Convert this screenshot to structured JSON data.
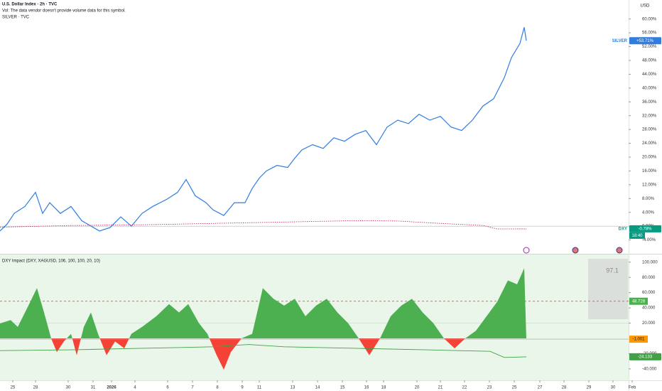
{
  "chart_data": [
    {
      "type": "line",
      "title": "U.S. Dollar Index · 2h · TVC",
      "subtitle": "Vol: The data vendor doesn't provide volume data for this symbol.",
      "symbol_line": "SILVER · TVC",
      "currency": "USD",
      "xlim": [
        0,
        885
      ],
      "ylim": [
        -8,
        65.5
      ],
      "yticks": [
        {
          "value": 60,
          "label": "60.00%"
        },
        {
          "value": 56,
          "label": "56.00%"
        },
        {
          "value": 52,
          "label": "52.00%"
        },
        {
          "value": 48,
          "label": "48.00%"
        },
        {
          "value": 44,
          "label": "44.00%"
        },
        {
          "value": 40,
          "label": "40.00%"
        },
        {
          "value": 36,
          "label": "36.00%"
        },
        {
          "value": 32,
          "label": "32.00%"
        },
        {
          "value": 28,
          "label": "28.00%"
        },
        {
          "value": 24,
          "label": "24.00%"
        },
        {
          "value": 20,
          "label": "20.00%"
        },
        {
          "value": 16,
          "label": "16.00%"
        },
        {
          "value": 12,
          "label": "12.00%"
        },
        {
          "value": 8,
          "label": "8.00%"
        },
        {
          "value": 4,
          "label": "4.00%"
        },
        {
          "value": 0,
          "label": "0.00%"
        },
        {
          "value": -4,
          "label": "-4.00%"
        }
      ],
      "series": [
        {
          "name": "SILVER",
          "color": "#2f7de1",
          "x": [
            0,
            10,
            20,
            35,
            50,
            60,
            70,
            85,
            100,
            115,
            140,
            155,
            170,
            185,
            200,
            215,
            235,
            250,
            262,
            275,
            290,
            300,
            315,
            330,
            345,
            355,
            365,
            375,
            390,
            405,
            415,
            425,
            440,
            455,
            470,
            485,
            500,
            515,
            530,
            545,
            560,
            575,
            590,
            605,
            620,
            635,
            650,
            665,
            680,
            695,
            710,
            720,
            732,
            738,
            741
          ],
          "values": [
            -1.4,
            0.6,
            3.7,
            5.7,
            9.8,
            3.7,
            6.8,
            3.7,
            5.7,
            1.6,
            -1.4,
            -0.4,
            2.7,
            0,
            3.7,
            5.7,
            7.8,
            9.8,
            13.5,
            8.8,
            6.8,
            4.7,
            3.1,
            6.8,
            6.8,
            10.9,
            13.9,
            16,
            17.6,
            17,
            19.7,
            22.1,
            23.6,
            22.5,
            25.6,
            24.6,
            26.6,
            27.7,
            23.6,
            28.7,
            30.7,
            29.7,
            32.4,
            30.7,
            31.8,
            28.7,
            27.7,
            30.7,
            34.8,
            36.9,
            43,
            48.8,
            52.9,
            57.6,
            53.71
          ],
          "last_label": "+53.71%"
        },
        {
          "name": "DXY",
          "color": "#c2185b",
          "x": [
            0,
            100,
            200,
            300,
            400,
            500,
            560,
            620,
            680,
            700,
            741
          ],
          "values": [
            -0.3,
            0.2,
            0.4,
            0.8,
            1.2,
            1.6,
            1.5,
            0.8,
            0.2,
            -0.8,
            -0.78
          ],
          "last_label": "-0.78%",
          "countdown": "18:40"
        }
      ]
    },
    {
      "type": "area",
      "title": "DXY Impact (DXY, XAGUSD, 106, 100, 100, 20, 10)",
      "xlim": [
        0,
        885
      ],
      "ylim": [
        -55,
        110
      ],
      "yticks": [
        {
          "value": 100,
          "label": "100.000"
        },
        {
          "value": 80,
          "label": "80.000"
        },
        {
          "value": 60,
          "label": "60.000"
        },
        {
          "value": 40,
          "label": "40.000"
        },
        {
          "value": 20,
          "label": "20.000"
        },
        {
          "value": -20,
          "label": "-20.000"
        },
        {
          "value": -40,
          "label": "-40.000"
        }
      ],
      "xticks": [
        {
          "value": 18,
          "label": "25"
        },
        {
          "value": 50,
          "label": "28"
        },
        {
          "value": 96,
          "label": "30"
        },
        {
          "value": 131,
          "label": "31"
        },
        {
          "value": 157,
          "label": "2026"
        },
        {
          "value": 190,
          "label": "4"
        },
        {
          "value": 236,
          "label": "6"
        },
        {
          "value": 271,
          "label": "7"
        },
        {
          "value": 306,
          "label": "8"
        },
        {
          "value": 341,
          "label": "9"
        },
        {
          "value": 365,
          "label": "11"
        },
        {
          "value": 412,
          "label": "13"
        },
        {
          "value": 447,
          "label": "14"
        },
        {
          "value": 482,
          "label": "15"
        },
        {
          "value": 516,
          "label": "16"
        },
        {
          "value": 540,
          "label": "18"
        },
        {
          "value": 587,
          "label": "20"
        },
        {
          "value": 620,
          "label": "21"
        },
        {
          "value": 654,
          "label": "22"
        },
        {
          "value": 689,
          "label": "23"
        },
        {
          "value": 724,
          "label": "25"
        },
        {
          "value": 760,
          "label": "27"
        },
        {
          "value": 794,
          "label": "28"
        },
        {
          "value": 829,
          "label": "29"
        },
        {
          "value": 863,
          "label": "30"
        },
        {
          "value": 890,
          "label": "Feb"
        }
      ],
      "series": [
        {
          "color": "#4caf50",
          "negative_color": "#f44336",
          "x": [
            0,
            15,
            25,
            40,
            52,
            62,
            72,
            80,
            90,
            100,
            108,
            118,
            128,
            138,
            150,
            162,
            175,
            185,
            200,
            220,
            238,
            252,
            265,
            280,
            292,
            305,
            315,
            325,
            340,
            355,
            370,
            385,
            400,
            415,
            430,
            445,
            460,
            475,
            490,
            505,
            520,
            535,
            550,
            565,
            580,
            595,
            610,
            625,
            640,
            655,
            670,
            685,
            700,
            715,
            728,
            738,
            741
          ],
          "values": [
            19.6,
            24,
            15,
            43,
            66,
            34,
            0,
            -18,
            -4,
            6,
            -22,
            15,
            34,
            6,
            -22,
            -4,
            -13,
            6,
            15,
            29,
            45,
            34,
            45,
            20,
            6,
            -22,
            -41,
            -18,
            0,
            6,
            66,
            52,
            43,
            52,
            29,
            43,
            52,
            34,
            20,
            0,
            -22,
            0,
            29,
            43,
            52,
            34,
            20,
            0,
            -13,
            0,
            10,
            29,
            48,
            76,
            71,
            92,
            -1.001
          ],
          "last_label": "-1.001"
        },
        {
          "color": "#43a047",
          "axis_line": true,
          "x": [
            0,
            100,
            200,
            300,
            350,
            400,
            500,
            600,
            690,
            710,
            741
          ],
          "values": [
            -16,
            -15,
            -13,
            -11,
            -8,
            -11,
            -13,
            -15,
            -17,
            -25,
            -24.133
          ],
          "last_label": "-24.133"
        }
      ],
      "level": {
        "value": 48.728,
        "label": "48.728",
        "color": "#e53935"
      },
      "table_value": "97.1"
    }
  ]
}
